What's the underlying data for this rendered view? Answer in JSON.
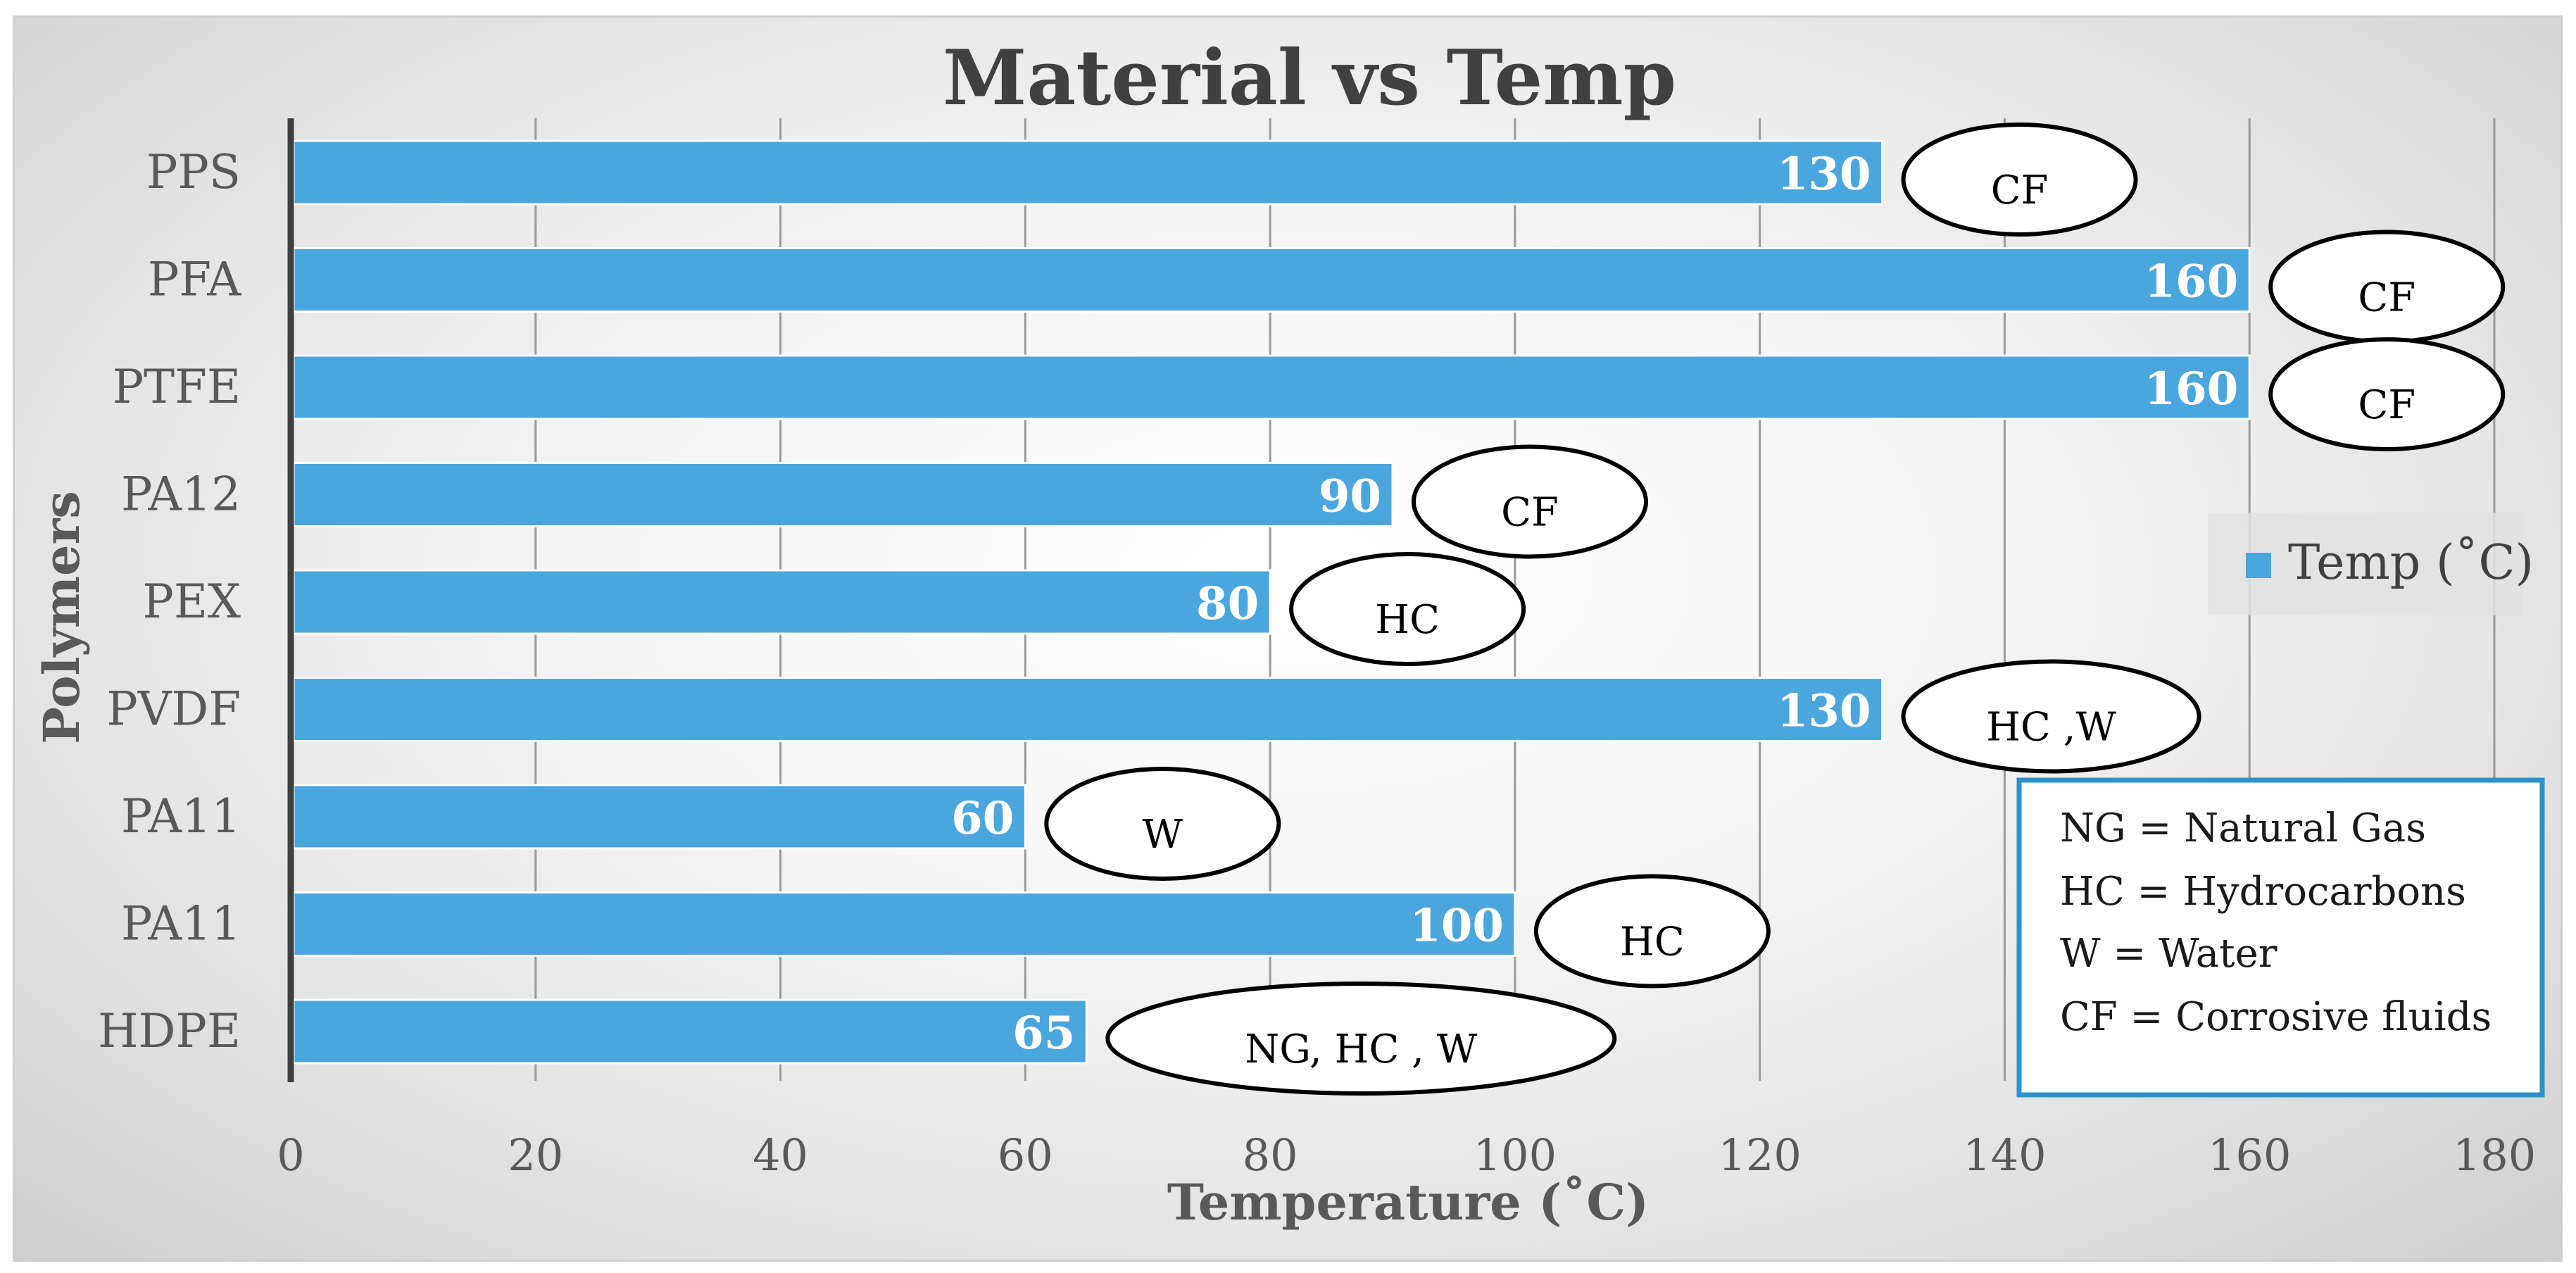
{
  "chart_data": {
    "type": "bar",
    "orientation": "horizontal",
    "title": "Material vs Temp",
    "xlabel": "Temperature (˚C)",
    "ylabel": "Polymers",
    "xlim": [
      0,
      180
    ],
    "x_ticks": [
      0,
      20,
      40,
      60,
      80,
      100,
      120,
      140,
      160,
      180
    ],
    "grid": "vertical",
    "legend": {
      "position": "right",
      "entries": [
        "Temp (˚C)"
      ]
    },
    "series": [
      {
        "name": "Temp (˚C)",
        "color": "#4BA6DE",
        "data": [
          {
            "category": "PPS",
            "value": 130,
            "fluid": "CF"
          },
          {
            "category": "PFA",
            "value": 160,
            "fluid": "CF"
          },
          {
            "category": "PTFE",
            "value": 160,
            "fluid": "CF"
          },
          {
            "category": "PA12",
            "value": 90,
            "fluid": "CF"
          },
          {
            "category": "PEX",
            "value": 80,
            "fluid": "HC"
          },
          {
            "category": "PVDF",
            "value": 130,
            "fluid": "HC ,W"
          },
          {
            "category": "PA11",
            "value": 60,
            "fluid": "W"
          },
          {
            "category": "PA11",
            "value": 100,
            "fluid": "HC"
          },
          {
            "category": "HDPE",
            "value": 65,
            "fluid": "NG, HC , W"
          }
        ]
      }
    ],
    "key_box": [
      "NG = Natural Gas",
      "HC = Hydrocarbons",
      "W = Water",
      "CF = Corrosive fluids"
    ],
    "colors": {
      "bar": "#4BA6DE",
      "grid": "#9a9a9a",
      "axis": "#3f3f3f",
      "text": "#595959",
      "title": "#404040",
      "key_border": "#2a93c9"
    }
  }
}
